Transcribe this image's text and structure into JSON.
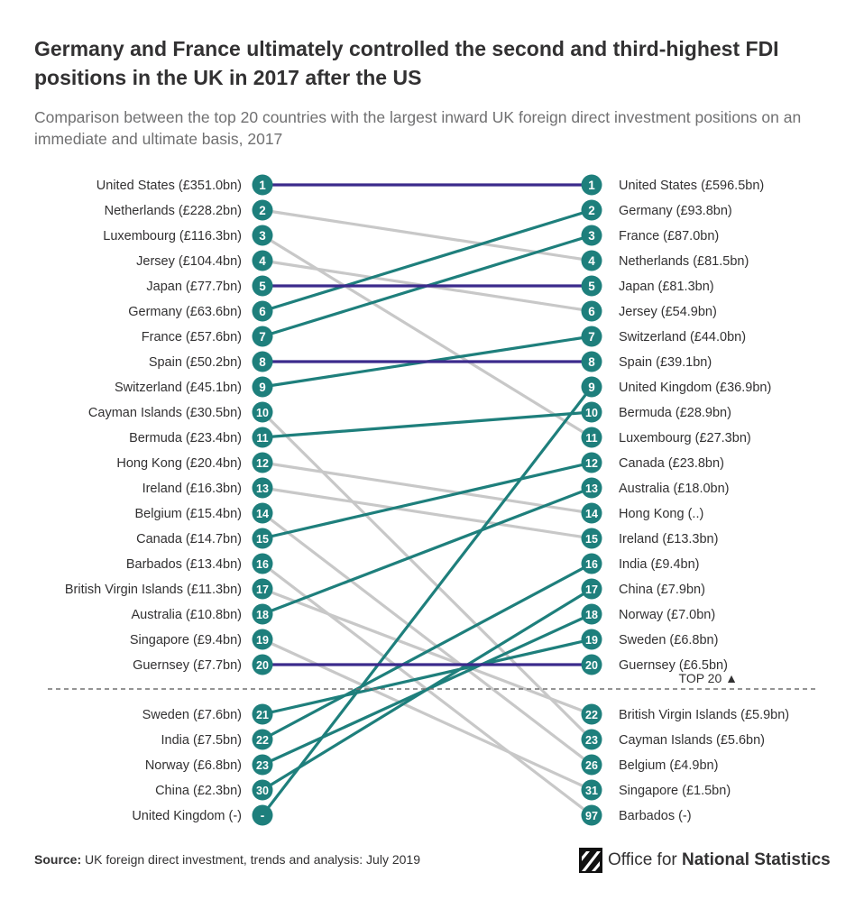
{
  "title": "Germany and France ultimately controlled the second and third-highest FDI positions in the UK in 2017 after the US",
  "subtitle": "Comparison between the top 20 countries with the largest inward UK foreign direct investment positions on an immediate and ultimate basis, 2017",
  "source_label": "Source:",
  "source_text": " UK foreign direct investment, trends and analysis: July 2019",
  "logo": {
    "text_regular": "Office for ",
    "text_bold": "National Statistics",
    "icon": "ons-logo-icon"
  },
  "colors": {
    "same": "#3b2a8c",
    "up": "#1e7f7c",
    "down": "#c8c8c8",
    "badge": "#1e7f7c",
    "text": "#323132"
  },
  "chart_data": {
    "type": "slope",
    "top_marker_label": "TOP 20 ▲",
    "left": [
      {
        "label": "United States (£351.0bn)",
        "rank": "1"
      },
      {
        "label": "Netherlands (£228.2bn)",
        "rank": "2"
      },
      {
        "label": "Luxembourg (£116.3bn)",
        "rank": "3"
      },
      {
        "label": "Jersey (£104.4bn)",
        "rank": "4"
      },
      {
        "label": "Japan (£77.7bn)",
        "rank": "5"
      },
      {
        "label": "Germany (£63.6bn)",
        "rank": "6"
      },
      {
        "label": "France (£57.6bn)",
        "rank": "7"
      },
      {
        "label": "Spain (£50.2bn)",
        "rank": "8"
      },
      {
        "label": "Switzerland (£45.1bn)",
        "rank": "9"
      },
      {
        "label": "Cayman Islands (£30.5bn)",
        "rank": "10"
      },
      {
        "label": "Bermuda (£23.4bn)",
        "rank": "11"
      },
      {
        "label": "Hong Kong (£20.4bn)",
        "rank": "12"
      },
      {
        "label": "Ireland (£16.3bn)",
        "rank": "13"
      },
      {
        "label": "Belgium (£15.4bn)",
        "rank": "14"
      },
      {
        "label": "Canada (£14.7bn)",
        "rank": "15"
      },
      {
        "label": "Barbados (£13.4bn)",
        "rank": "16"
      },
      {
        "label": "British Virgin Islands (£11.3bn)",
        "rank": "17"
      },
      {
        "label": "Australia (£10.8bn)",
        "rank": "18"
      },
      {
        "label": "Singapore (£9.4bn)",
        "rank": "19"
      },
      {
        "label": "Guernsey (£7.7bn)",
        "rank": "20"
      },
      {
        "label": "Sweden (£7.6bn)",
        "rank": "21"
      },
      {
        "label": "India (£7.5bn)",
        "rank": "22"
      },
      {
        "label": "Norway (£6.8bn)",
        "rank": "23"
      },
      {
        "label": "China (£2.3bn)",
        "rank": "30"
      },
      {
        "label": "United Kingdom (-)",
        "rank": "-"
      }
    ],
    "right": [
      {
        "label": "United States (£596.5bn)",
        "rank": "1"
      },
      {
        "label": "Germany (£93.8bn)",
        "rank": "2"
      },
      {
        "label": "France (£87.0bn)",
        "rank": "3"
      },
      {
        "label": "Netherlands (£81.5bn)",
        "rank": "4"
      },
      {
        "label": "Japan (£81.3bn)",
        "rank": "5"
      },
      {
        "label": "Jersey (£54.9bn)",
        "rank": "6"
      },
      {
        "label": "Switzerland (£44.0bn)",
        "rank": "7"
      },
      {
        "label": "Spain (£39.1bn)",
        "rank": "8"
      },
      {
        "label": "United Kingdom (£36.9bn)",
        "rank": "9"
      },
      {
        "label": "Bermuda (£28.9bn)",
        "rank": "10"
      },
      {
        "label": "Luxembourg (£27.3bn)",
        "rank": "11"
      },
      {
        "label": "Canada (£23.8bn)",
        "rank": "12"
      },
      {
        "label": "Australia (£18.0bn)",
        "rank": "13"
      },
      {
        "label": "Hong Kong (..)",
        "rank": "14"
      },
      {
        "label": "Ireland (£13.3bn)",
        "rank": "15"
      },
      {
        "label": "India (£9.4bn)",
        "rank": "16"
      },
      {
        "label": "China (£7.9bn)",
        "rank": "17"
      },
      {
        "label": "Norway (£7.0bn)",
        "rank": "18"
      },
      {
        "label": "Sweden (£6.8bn)",
        "rank": "19"
      },
      {
        "label": "Guernsey (£6.5bn)",
        "rank": "20"
      },
      {
        "label": "British Virgin Islands (£5.9bn)",
        "rank": "22"
      },
      {
        "label": "Cayman Islands (£5.6bn)",
        "rank": "23"
      },
      {
        "label": "Belgium (£4.9bn)",
        "rank": "26"
      },
      {
        "label": "Singapore (£1.5bn)",
        "rank": "31"
      },
      {
        "label": "Barbados (-)",
        "rank": "97"
      }
    ],
    "links": [
      {
        "from": 0,
        "to": 0,
        "change": "same"
      },
      {
        "from": 1,
        "to": 3,
        "change": "down"
      },
      {
        "from": 2,
        "to": 10,
        "change": "down"
      },
      {
        "from": 3,
        "to": 5,
        "change": "down"
      },
      {
        "from": 4,
        "to": 4,
        "change": "same"
      },
      {
        "from": 5,
        "to": 1,
        "change": "up"
      },
      {
        "from": 6,
        "to": 2,
        "change": "up"
      },
      {
        "from": 7,
        "to": 7,
        "change": "same"
      },
      {
        "from": 8,
        "to": 6,
        "change": "up"
      },
      {
        "from": 9,
        "to": 21,
        "change": "down"
      },
      {
        "from": 10,
        "to": 9,
        "change": "up"
      },
      {
        "from": 11,
        "to": 13,
        "change": "down"
      },
      {
        "from": 12,
        "to": 14,
        "change": "down"
      },
      {
        "from": 13,
        "to": 22,
        "change": "down"
      },
      {
        "from": 14,
        "to": 11,
        "change": "up"
      },
      {
        "from": 15,
        "to": 24,
        "change": "down"
      },
      {
        "from": 16,
        "to": 20,
        "change": "down"
      },
      {
        "from": 17,
        "to": 12,
        "change": "up"
      },
      {
        "from": 18,
        "to": 23,
        "change": "down"
      },
      {
        "from": 19,
        "to": 19,
        "change": "same"
      },
      {
        "from": 20,
        "to": 18,
        "change": "up"
      },
      {
        "from": 21,
        "to": 15,
        "change": "up"
      },
      {
        "from": 22,
        "to": 17,
        "change": "up"
      },
      {
        "from": 23,
        "to": 16,
        "change": "up"
      },
      {
        "from": 24,
        "to": 8,
        "change": "up"
      }
    ]
  }
}
